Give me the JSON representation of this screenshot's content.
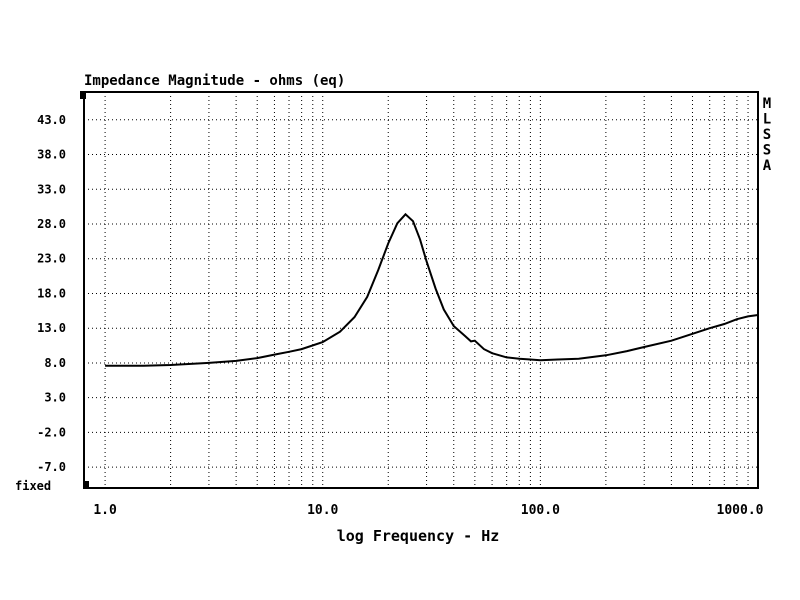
{
  "chart_data": {
    "type": "line",
    "title": "Impedance Magnitude - ohms (eq)",
    "xlabel": "log Frequency - Hz",
    "ylabel": "",
    "x_scale": "log",
    "xlim": [
      0.8,
      1000.0
    ],
    "ylim": [
      -10.0,
      47.0
    ],
    "x_ticks": [
      {
        "value": 1,
        "label": "1.0"
      },
      {
        "value": 10,
        "label": "10.0"
      },
      {
        "value": 100,
        "label": "100.0"
      },
      {
        "value": 1000,
        "label": "1000.0"
      }
    ],
    "y_ticks": [
      {
        "value": 43,
        "label": "43.0"
      },
      {
        "value": 38,
        "label": "38.0"
      },
      {
        "value": 33,
        "label": "33.0"
      },
      {
        "value": 28,
        "label": "28.0"
      },
      {
        "value": 23,
        "label": "23.0"
      },
      {
        "value": 18,
        "label": "18.0"
      },
      {
        "value": 13,
        "label": "13.0"
      },
      {
        "value": 8,
        "label": "8.0"
      },
      {
        "value": 3,
        "label": "3.0"
      },
      {
        "value": -2,
        "label": "-2.0"
      },
      {
        "value": -7,
        "label": "-7.0"
      }
    ],
    "grid": true,
    "fixed_label": "fixed",
    "side_label": "MLSSA",
    "series": [
      {
        "x": [
          1.0,
          1.5,
          2.0,
          3.0,
          4.0,
          5.0,
          6.0,
          7.0,
          8.0,
          10.0,
          12.0,
          14.0,
          16.0,
          18.0,
          20.0,
          22.0,
          24.0,
          26.0,
          28.0,
          30.0,
          33.0,
          36.0,
          40.0,
          45.0,
          48.0,
          50.0,
          55.0,
          60.0,
          70.0,
          80.0,
          90.0,
          100.0,
          120.0,
          150.0,
          200.0,
          250.0,
          300.0,
          400.0,
          500.0,
          600.0,
          700.0,
          800.0,
          900.0,
          1000.0
        ],
        "y": [
          7.6,
          7.6,
          7.7,
          8.0,
          8.3,
          8.7,
          9.2,
          9.6,
          10.0,
          11.0,
          12.5,
          14.6,
          17.5,
          21.4,
          25.2,
          28.1,
          29.4,
          28.4,
          25.8,
          22.6,
          18.7,
          15.7,
          13.3,
          11.9,
          11.1,
          11.2,
          10.0,
          9.4,
          8.8,
          8.6,
          8.5,
          8.4,
          8.5,
          8.6,
          9.1,
          9.7,
          10.3,
          11.2,
          12.2,
          13.0,
          13.6,
          14.3,
          14.7,
          14.9
        ]
      }
    ]
  }
}
